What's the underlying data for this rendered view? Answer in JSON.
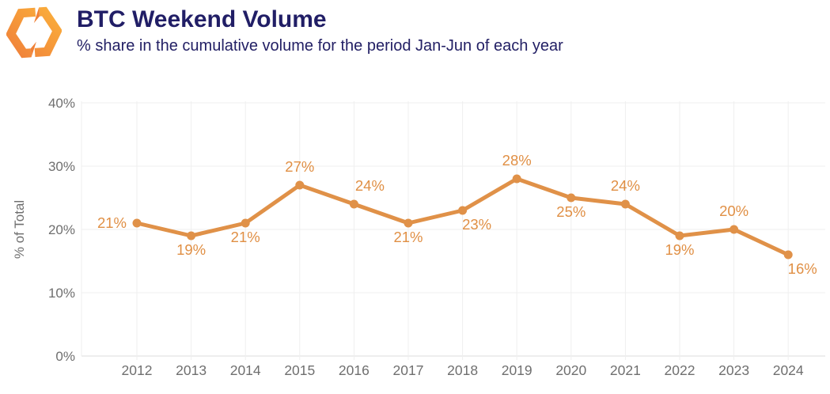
{
  "header": {
    "title": "BTC Weekend Volume",
    "subtitle": "% share in the cumulative volume for the period Jan-Jun of each year"
  },
  "logo": {
    "name": "kaiko-logo"
  },
  "colors": {
    "accent_orange": "#E09148",
    "label_orange": "#E08F44",
    "title_navy": "#211E66",
    "subtitle_navy": "#232065",
    "axis_text_gray": "#6F6F6F",
    "gridline": "#EFEFEF",
    "axis_line": "#DCDCDC",
    "logo_orange_dark": "#EE7B3B",
    "logo_orange_mid": "#F08036",
    "logo_orange_light": "#FBB33C",
    "background": "#FFFFFF"
  },
  "chart_data": {
    "type": "line",
    "title": "BTC Weekend Volume",
    "subtitle": "% share in the cumulative volume for the period Jan-Jun of each year",
    "categories": [
      "2012",
      "2013",
      "2014",
      "2015",
      "2016",
      "2017",
      "2018",
      "2019",
      "2020",
      "2021",
      "2022",
      "2023",
      "2024"
    ],
    "values": [
      21,
      19,
      21,
      27,
      24,
      21,
      23,
      28,
      25,
      24,
      19,
      20,
      16
    ],
    "point_labels": [
      "21%",
      "19%",
      "21%",
      "27%",
      "24%",
      "21%",
      "23%",
      "28%",
      "25%",
      "24%",
      "19%",
      "20%",
      "16%"
    ],
    "label_positions": [
      "left",
      "below",
      "below",
      "above",
      "above-right",
      "below",
      "below-right",
      "above",
      "below",
      "above",
      "below",
      "above",
      "below-right"
    ],
    "xlabel": "",
    "ylabel": "% of Total",
    "yticks": [
      0,
      10,
      20,
      30,
      40
    ],
    "ytick_labels": [
      "0%",
      "10%",
      "20%",
      "30%",
      "40%"
    ],
    "ylim": [
      0,
      40
    ],
    "grid": true,
    "legend": false,
    "marker": "circle"
  }
}
